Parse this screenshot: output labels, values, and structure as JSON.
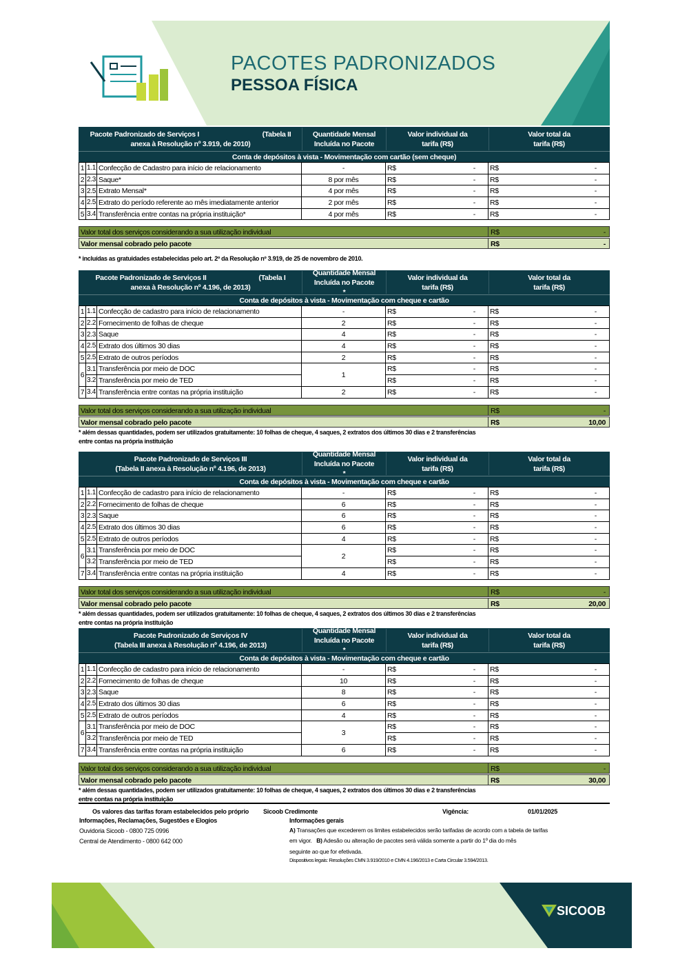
{
  "header": {
    "title": "PACOTES PADRONIZADOS",
    "subtitle": "PESSOA FÍSICA"
  },
  "colors": {
    "header_bg": "#0d3b46",
    "total_row": "#77933c",
    "charged_row": "#d8e4bc",
    "accent_green": "#d9ebc8"
  },
  "tables": [
    {
      "title_lines": [
        "Pacote Padronizado de Serviços I                                   (Tabela II",
        "anexa à Resolução nº 3.919, de 2010)"
      ],
      "col_qty": "Quantidade Mensal Incluída no Pacote",
      "col_ind": "Valor individual da tarifa (R$)",
      "col_tot": "Valor total da tarifa (R$)",
      "section": "Conta de depósitos à vista - Movimentação com cartão (sem cheque)",
      "rows": [
        {
          "n": "1",
          "code": "1.1",
          "desc": "Confecção de Cadastro para início de relacionamento",
          "qty": "-"
        },
        {
          "n": "2",
          "code": "2.3.1",
          "desc": "Saque*",
          "qty": "8 por mês"
        },
        {
          "n": "3",
          "code": "2.5.1",
          "desc": "Extrato Mensal*",
          "qty": "4 por mês"
        },
        {
          "n": "4",
          "code": "2.5.2",
          "desc": "Extrato do período referente ao mês imediatamente anterior",
          "qty": "2 por mês"
        },
        {
          "n": "5",
          "code": "3.4",
          "desc": "Transferência entre contas na própria instituição*",
          "qty": "4 por mês"
        }
      ],
      "currency": "R$",
      "dash": "-",
      "total_label": "Valor total dos serviços considerando a sua utilização individual",
      "total_value": "-",
      "charged_label": "Valor mensal cobrado pelo pacote",
      "charged_value": "-",
      "note": [
        "* incluídas as gratuidades estabelecidas pelo art. 2º da Resolução nº 3.919, de 25 de novembro de 2010."
      ]
    },
    {
      "title_lines": [
        "Pacote Padronizado de Serviços II                             (Tabela I",
        "anexa à Resolução nº 4.196, de 2013)"
      ],
      "col_qty": "Quantidade Mensal Incluída no Pacote *",
      "col_ind": "Valor individual da tarifa (R$)",
      "col_tot": "Valor total da tarifa (R$)",
      "section": "Conta de depósitos à vista - Movimentação com cheque e cartão",
      "rows": [
        {
          "n": "1",
          "code": "1.1",
          "desc": "Confecção de cadastro para início de relacionamento",
          "qty": "-"
        },
        {
          "n": "2",
          "code": "2.2.1",
          "desc": "Fornecimento de folhas de cheque",
          "qty": "2"
        },
        {
          "n": "3",
          "code": "2.3.1",
          "desc": "Saque",
          "qty": "4"
        },
        {
          "n": "4",
          "code": "2.5.1",
          "desc": "Extrato dos últimos 30 dias",
          "qty": "4"
        },
        {
          "n": "5",
          "code": "2.5.2",
          "desc": "Extrato de outros períodos",
          "qty": "2"
        },
        {
          "n": "6",
          "code": "3.1",
          "desc": "Transferência por meio de DOC",
          "qty": "1"
        },
        {
          "merged": true,
          "code": "3.2",
          "desc": "Transferência por meio de TED"
        },
        {
          "n": "7",
          "code": "3.4",
          "desc": "Transferência entre contas na própria instituição",
          "qty": "2"
        }
      ],
      "currency": "R$",
      "dash": "-",
      "total_label": "Valor total dos serviços considerando a sua utilização individual",
      "total_value": "-",
      "charged_label": "Valor mensal cobrado pelo pacote",
      "charged_value": "10,00",
      "note": [
        "* além dessas quantidades, podem ser utilizados gratuitamente: 10 folhas de cheque, 4 saques, 2 extratos dos últimos 30 dias e 2 transferências",
        "entre contas na própria instituição"
      ]
    },
    {
      "title_lines": [
        "Pacote Padronizado de Serviços III",
        "(Tabela II anexa à Resolução nº 4.196, de 2013)"
      ],
      "col_qty": "Quantidade Mensal Incluída no Pacote *",
      "col_ind": "Valor individual da tarifa (R$)",
      "col_tot": "Valor total da tarifa (R$)",
      "section": "Conta de depósitos à vista - Movimentação com cheque e cartão",
      "rows": [
        {
          "n": "1",
          "code": "1.1",
          "desc": "Confecção de cadastro para início de relacionamento",
          "qty": "-"
        },
        {
          "n": "2",
          "code": "2.2.1",
          "desc": "Fornecimento de folhas de cheque",
          "qty": "6"
        },
        {
          "n": "3",
          "code": "2.3.1",
          "desc": "Saque",
          "qty": "6"
        },
        {
          "n": "4",
          "code": "2.5.1",
          "desc": "Extrato dos últimos 30 dias",
          "qty": "6"
        },
        {
          "n": "5",
          "code": "2.5.2",
          "desc": "Extrato de outros períodos",
          "qty": "4"
        },
        {
          "n": "6",
          "code": "3.1",
          "desc": "Transferência por meio de DOC",
          "qty": "2"
        },
        {
          "merged": true,
          "code": "3.2",
          "desc": "Transferência por meio de TED"
        },
        {
          "n": "7",
          "code": "3.4",
          "desc": "Transferência entre contas na própria instituição",
          "qty": "4"
        }
      ],
      "currency": "R$",
      "dash": "-",
      "total_label": "Valor total dos serviços considerando a sua utilização individual",
      "total_value": "-",
      "charged_label": "Valor mensal cobrado pelo pacote",
      "charged_value": "20,00",
      "note": [
        "* além dessas quantidades, podem ser utilizados gratuitamente: 10 folhas de cheque, 4 saques, 2 extratos dos últimos 30 dias e 2 transferências",
        "entre contas na própria instituição"
      ]
    },
    {
      "title_lines": [
        "Pacote Padronizado de Serviços IV",
        "(Tabela III anexa à Resolução nº 4.196, de 2013)"
      ],
      "col_qty": "Quantidade Mensal Incluída no Pacote *",
      "col_ind": "Valor individual da tarifa (R$)",
      "col_tot": "Valor total da tarifa (R$)",
      "section": "Conta de depósitos à vista - Movimentação com cheque e cartão",
      "rows": [
        {
          "n": "1",
          "code": "1.1",
          "desc": "Confecção de cadastro para início de relacionamento",
          "qty": "-"
        },
        {
          "n": "2",
          "code": "2.2.1",
          "desc": "Fornecimento de folhas de cheque",
          "qty": "10"
        },
        {
          "n": "3",
          "code": "2.3.1",
          "desc": "Saque",
          "qty": "8"
        },
        {
          "n": "4",
          "code": "2.5.1",
          "desc": "Extrato dos últimos 30 dias",
          "qty": "6"
        },
        {
          "n": "5",
          "code": "2.5.2",
          "desc": "Extrato de outros períodos",
          "qty": "4"
        },
        {
          "n": "6",
          "code": "3.1",
          "desc": "Transferência por meio de DOC",
          "qty": "3"
        },
        {
          "merged": true,
          "code": "3.2",
          "desc": "Transferência por meio de TED"
        },
        {
          "n": "7",
          "code": "3.4",
          "desc": "Transferência entre contas na própria instituição",
          "qty": "6"
        }
      ],
      "currency": "R$",
      "dash": "-",
      "total_label": "Valor total dos serviços considerando a sua utilização individual",
      "total_value": "-",
      "charged_label": "Valor mensal cobrado pelo pacote",
      "charged_value": "30,00",
      "note": [
        "* além dessas quantidades, podem ser utilizados gratuitamente: 10 folhas de cheque, 4 saques, 2 extratos dos últimos 30 dias e 2 transferências",
        "entre contas na própria instituição"
      ]
    }
  ],
  "footer": {
    "established": "Os valores das tarifas foram estabelecidos pelo próprio",
    "entity": "Sicoob Credimonte",
    "validity_label": "Vigência:",
    "validity_date": "01/01/2025",
    "contact_title": "Informações, Reclamações, Sugestões e Elogios",
    "ouvidoria": "Ouvidoria Sicoob - 0800 725 0996",
    "central": "Central de Atendimento - 0800 642 000",
    "info_title": "Informações gerais",
    "info_a_label": "A)",
    "info_a": "Transações que excederem os limites estabelecidos serão tarifadas de acordo com a tabela de tarifas",
    "info_a2": "em vigor.",
    "info_b_label": "B)",
    "info_b": "Adesão ou alteração de pacotes será válida somente a partir do 1º dia do mês",
    "info_b2": "seguinte ao que for efetivada.",
    "legal": "Dispositivos legais: Resoluções CMN 3.919/2010 e CMN 4.196/2013 e Carta Circular 3.594/2013."
  },
  "brand": {
    "logo_text": "SICOOB"
  }
}
